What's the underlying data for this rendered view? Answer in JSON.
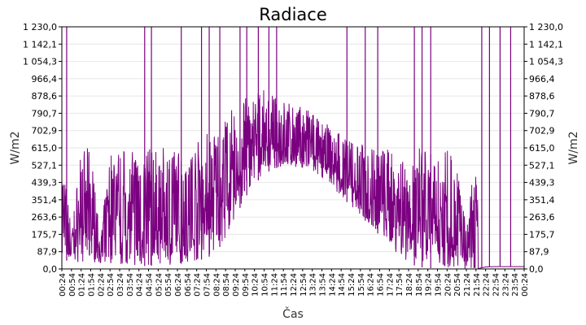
{
  "chart_data": {
    "type": "line",
    "title": "Radiace",
    "xlabel": "Čas",
    "ylabel": "W/m2",
    "ylabel_right": "W/m2",
    "ylim": [
      0,
      1230
    ],
    "y_ticks": [
      "0,0",
      "87,9",
      "175,7",
      "263,6",
      "351,4",
      "439,3",
      "527,1",
      "615,0",
      "702,9",
      "790,7",
      "878,6",
      "966,4",
      "1 054,3",
      "1 142,1",
      "1 230,0"
    ],
    "x_ticks": [
      "00:24",
      "00:54",
      "01:24",
      "01:54",
      "02:24",
      "02:54",
      "03:24",
      "03:54",
      "04:24",
      "04:54",
      "05:24",
      "05:54",
      "06:24",
      "06:54",
      "07:24",
      "07:54",
      "08:24",
      "08:54",
      "09:24",
      "09:54",
      "10:24",
      "10:54",
      "11:24",
      "11:54",
      "12:24",
      "12:54",
      "13:24",
      "13:54",
      "14:24",
      "14:54",
      "15:24",
      "15:54",
      "16:24",
      "16:54",
      "17:24",
      "17:54",
      "18:24",
      "18:54",
      "19:24",
      "19:54",
      "20:24",
      "20:54",
      "21:24",
      "21:54",
      "22:24",
      "22:54",
      "23:24",
      "23:54",
      "00:24"
    ],
    "grid": true,
    "legend": "none",
    "series": [
      {
        "color": "#7b0080",
        "spike_x": [
          0.5,
          8.6,
          9.3,
          12.4,
          14.5,
          15.3,
          16.4,
          18.5,
          19.2,
          20.4,
          21.5,
          22.3,
          29.6,
          31.5,
          32.8,
          36.6,
          37.4,
          38.3,
          43.6,
          44.4,
          45.5,
          46.6
        ],
        "baseline_low": [
          [
            0,
            40
          ],
          [
            1,
            45
          ],
          [
            2,
            30
          ],
          [
            3,
            35
          ],
          [
            4,
            30
          ],
          [
            5,
            25
          ],
          [
            6,
            20
          ],
          [
            7,
            15
          ],
          [
            8,
            15
          ],
          [
            9,
            15
          ],
          [
            10,
            20
          ],
          [
            11,
            20
          ],
          [
            12,
            25
          ],
          [
            13,
            30
          ],
          [
            14,
            40
          ],
          [
            15,
            55
          ],
          [
            16,
            80
          ],
          [
            17,
            160
          ],
          [
            18,
            260
          ],
          [
            19,
            360
          ],
          [
            20,
            430
          ],
          [
            21,
            480
          ],
          [
            22,
            510
          ],
          [
            23,
            520
          ],
          [
            24,
            520
          ],
          [
            25,
            510
          ],
          [
            26,
            490
          ],
          [
            27,
            460
          ],
          [
            28,
            420
          ],
          [
            29,
            370
          ],
          [
            30,
            320
          ],
          [
            31,
            270
          ],
          [
            32,
            220
          ],
          [
            33,
            170
          ],
          [
            34,
            120
          ],
          [
            35,
            70
          ],
          [
            36,
            30
          ],
          [
            37,
            10
          ],
          [
            38,
            5
          ],
          [
            39,
            2
          ],
          [
            40,
            0
          ],
          [
            41,
            0
          ],
          [
            42,
            0
          ],
          [
            43,
            0
          ],
          [
            44,
            10
          ],
          [
            45,
            12
          ],
          [
            46,
            12
          ],
          [
            47,
            12
          ],
          [
            48,
            12
          ]
        ],
        "envelope_high": [
          [
            0,
            615
          ],
          [
            1,
            200
          ],
          [
            2,
            615
          ],
          [
            3,
            615
          ],
          [
            4,
            150
          ],
          [
            5,
            615
          ],
          [
            6,
            615
          ],
          [
            7,
            600
          ],
          [
            8,
            615
          ],
          [
            9,
            615
          ],
          [
            10,
            615
          ],
          [
            11,
            615
          ],
          [
            12,
            620
          ],
          [
            13,
            615
          ],
          [
            14,
            650
          ],
          [
            15,
            700
          ],
          [
            16,
            740
          ],
          [
            17,
            790
          ],
          [
            18,
            830
          ],
          [
            19,
            870
          ],
          [
            20,
            900
          ],
          [
            21,
            910
          ],
          [
            22,
            890
          ],
          [
            23,
            860
          ],
          [
            24,
            840
          ],
          [
            25,
            820
          ],
          [
            26,
            800
          ],
          [
            27,
            760
          ],
          [
            28,
            720
          ],
          [
            29,
            690
          ],
          [
            30,
            660
          ],
          [
            31,
            640
          ],
          [
            32,
            620
          ],
          [
            33,
            615
          ],
          [
            34,
            615
          ],
          [
            35,
            615
          ],
          [
            36,
            615
          ],
          [
            37,
            615
          ],
          [
            38,
            615
          ],
          [
            39,
            615
          ],
          [
            40,
            615
          ],
          [
            41,
            615
          ],
          [
            42,
            200
          ],
          [
            43,
            615
          ],
          [
            44,
            12
          ],
          [
            45,
            12
          ],
          [
            46,
            12
          ],
          [
            47,
            12
          ],
          [
            48,
            12
          ]
        ]
      }
    ]
  }
}
